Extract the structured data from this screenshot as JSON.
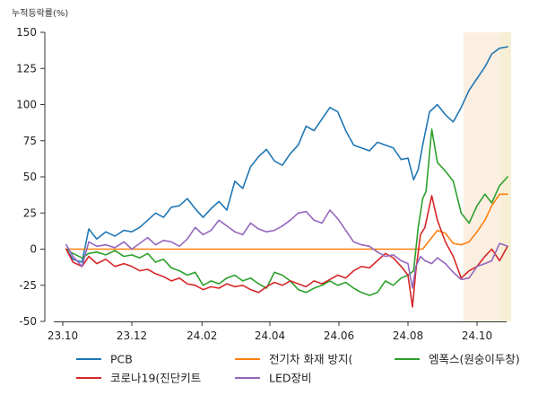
{
  "unit_label": "누적등락률(%)",
  "chart_data": {
    "type": "line",
    "title": "",
    "xlabel": "",
    "ylabel": "누적등락률(%)",
    "ylim": [
      -50,
      150
    ],
    "yticks": [
      -50,
      -25,
      0,
      25,
      50,
      75,
      100,
      125,
      150
    ],
    "xlim": [
      "2023-10-01",
      "2024-10-31"
    ],
    "xticks": [
      {
        "date": "2023-10-01",
        "label": "23.10"
      },
      {
        "date": "2023-12-01",
        "label": "23.12"
      },
      {
        "date": "2024-02-01",
        "label": "24.02"
      },
      {
        "date": "2024-04-01",
        "label": "24.04"
      },
      {
        "date": "2024-06-01",
        "label": "24.06"
      },
      {
        "date": "2024-08-01",
        "label": "24.08"
      },
      {
        "date": "2024-10-01",
        "label": "24.10"
      }
    ],
    "shaded_ranges": [
      {
        "from": "2024-09-19",
        "to": "2024-10-31",
        "color": "#fbefe2"
      },
      {
        "from": "2024-10-22",
        "to": "2024-10-31",
        "color": "#f6efd4"
      }
    ],
    "legend_position": "bottom",
    "series": [
      {
        "name": "PCB",
        "color": "#1f77b4",
        "points": [
          [
            "2023-10-04",
            0
          ],
          [
            "2023-10-10",
            -7
          ],
          [
            "2023-10-18",
            -9
          ],
          [
            "2023-10-24",
            14
          ],
          [
            "2023-10-31",
            7
          ],
          [
            "2023-11-08",
            12
          ],
          [
            "2023-11-16",
            9
          ],
          [
            "2023-11-24",
            13
          ],
          [
            "2023-12-01",
            12
          ],
          [
            "2023-12-08",
            15
          ],
          [
            "2023-12-15",
            20
          ],
          [
            "2023-12-22",
            25
          ],
          [
            "2023-12-29",
            22
          ],
          [
            "2024-01-05",
            29
          ],
          [
            "2024-01-12",
            30
          ],
          [
            "2024-01-19",
            35
          ],
          [
            "2024-01-26",
            28
          ],
          [
            "2024-02-02",
            22
          ],
          [
            "2024-02-09",
            28
          ],
          [
            "2024-02-16",
            33
          ],
          [
            "2024-02-23",
            27
          ],
          [
            "2024-03-01",
            47
          ],
          [
            "2024-03-08",
            42
          ],
          [
            "2024-03-15",
            57
          ],
          [
            "2024-03-22",
            64
          ],
          [
            "2024-03-29",
            69
          ],
          [
            "2024-04-05",
            61
          ],
          [
            "2024-04-12",
            58
          ],
          [
            "2024-04-19",
            66
          ],
          [
            "2024-04-26",
            72
          ],
          [
            "2024-05-03",
            85
          ],
          [
            "2024-05-10",
            82
          ],
          [
            "2024-05-17",
            90
          ],
          [
            "2024-05-24",
            98
          ],
          [
            "2024-05-31",
            95
          ],
          [
            "2024-06-07",
            82
          ],
          [
            "2024-06-14",
            72
          ],
          [
            "2024-06-21",
            70
          ],
          [
            "2024-06-28",
            68
          ],
          [
            "2024-07-05",
            74
          ],
          [
            "2024-07-12",
            72
          ],
          [
            "2024-07-19",
            70
          ],
          [
            "2024-07-26",
            62
          ],
          [
            "2024-08-01",
            63
          ],
          [
            "2024-08-06",
            48
          ],
          [
            "2024-08-10",
            55
          ],
          [
            "2024-08-14",
            72
          ],
          [
            "2024-08-20",
            95
          ],
          [
            "2024-08-27",
            100
          ],
          [
            "2024-09-03",
            93
          ],
          [
            "2024-09-10",
            88
          ],
          [
            "2024-09-17",
            98
          ],
          [
            "2024-09-24",
            110
          ],
          [
            "2024-10-01",
            118
          ],
          [
            "2024-10-08",
            126
          ],
          [
            "2024-10-14",
            135
          ],
          [
            "2024-10-21",
            139
          ],
          [
            "2024-10-28",
            140
          ]
        ]
      },
      {
        "name": "전기차 화재 방지(",
        "color": "#ff7f0e",
        "points": [
          [
            "2023-10-04",
            0
          ],
          [
            "2024-08-14",
            0
          ],
          [
            "2024-08-20",
            6
          ],
          [
            "2024-08-27",
            13
          ],
          [
            "2024-09-03",
            11
          ],
          [
            "2024-09-10",
            4
          ],
          [
            "2024-09-17",
            3
          ],
          [
            "2024-09-24",
            5
          ],
          [
            "2024-10-01",
            12
          ],
          [
            "2024-10-08",
            20
          ],
          [
            "2024-10-14",
            30
          ],
          [
            "2024-10-21",
            38
          ],
          [
            "2024-10-28",
            38
          ]
        ]
      },
      {
        "name": "엠폭스(원숭이두창)",
        "color": "#2ca02c",
        "points": [
          [
            "2023-10-04",
            0
          ],
          [
            "2023-10-10",
            -3
          ],
          [
            "2023-10-18",
            -6
          ],
          [
            "2023-10-24",
            -3
          ],
          [
            "2023-10-31",
            -2
          ],
          [
            "2023-11-08",
            -4
          ],
          [
            "2023-11-16",
            -1
          ],
          [
            "2023-11-24",
            -5
          ],
          [
            "2023-12-01",
            -4
          ],
          [
            "2023-12-08",
            -6
          ],
          [
            "2023-12-15",
            -3
          ],
          [
            "2023-12-22",
            -9
          ],
          [
            "2023-12-29",
            -7
          ],
          [
            "2024-01-05",
            -13
          ],
          [
            "2024-01-12",
            -15
          ],
          [
            "2024-01-19",
            -18
          ],
          [
            "2024-01-26",
            -16
          ],
          [
            "2024-02-02",
            -25
          ],
          [
            "2024-02-09",
            -22
          ],
          [
            "2024-02-16",
            -24
          ],
          [
            "2024-02-23",
            -20
          ],
          [
            "2024-03-01",
            -18
          ],
          [
            "2024-03-08",
            -22
          ],
          [
            "2024-03-15",
            -20
          ],
          [
            "2024-03-22",
            -24
          ],
          [
            "2024-03-29",
            -27
          ],
          [
            "2024-04-05",
            -16
          ],
          [
            "2024-04-12",
            -18
          ],
          [
            "2024-04-19",
            -22
          ],
          [
            "2024-04-26",
            -28
          ],
          [
            "2024-05-03",
            -30
          ],
          [
            "2024-05-10",
            -27
          ],
          [
            "2024-05-17",
            -25
          ],
          [
            "2024-05-24",
            -22
          ],
          [
            "2024-05-31",
            -25
          ],
          [
            "2024-06-07",
            -23
          ],
          [
            "2024-06-14",
            -27
          ],
          [
            "2024-06-21",
            -30
          ],
          [
            "2024-06-28",
            -32
          ],
          [
            "2024-07-05",
            -30
          ],
          [
            "2024-07-12",
            -22
          ],
          [
            "2024-07-19",
            -25
          ],
          [
            "2024-07-26",
            -20
          ],
          [
            "2024-08-01",
            -18
          ],
          [
            "2024-08-06",
            -15
          ],
          [
            "2024-08-10",
            15
          ],
          [
            "2024-08-14",
            35
          ],
          [
            "2024-08-17",
            40
          ],
          [
            "2024-08-22",
            83
          ],
          [
            "2024-08-27",
            60
          ],
          [
            "2024-09-03",
            54
          ],
          [
            "2024-09-10",
            47
          ],
          [
            "2024-09-17",
            25
          ],
          [
            "2024-09-24",
            18
          ],
          [
            "2024-10-01",
            30
          ],
          [
            "2024-10-08",
            38
          ],
          [
            "2024-10-14",
            32
          ],
          [
            "2024-10-21",
            44
          ],
          [
            "2024-10-28",
            50
          ]
        ]
      },
      {
        "name": "코로나19(진단키트",
        "color": "#d62728",
        "points": [
          [
            "2023-10-04",
            0
          ],
          [
            "2023-10-10",
            -9
          ],
          [
            "2023-10-18",
            -12
          ],
          [
            "2023-10-24",
            -5
          ],
          [
            "2023-10-31",
            -10
          ],
          [
            "2023-11-08",
            -7
          ],
          [
            "2023-11-16",
            -12
          ],
          [
            "2023-11-24",
            -10
          ],
          [
            "2023-12-01",
            -12
          ],
          [
            "2023-12-08",
            -15
          ],
          [
            "2023-12-15",
            -14
          ],
          [
            "2023-12-22",
            -17
          ],
          [
            "2023-12-29",
            -19
          ],
          [
            "2024-01-05",
            -22
          ],
          [
            "2024-01-12",
            -20
          ],
          [
            "2024-01-19",
            -24
          ],
          [
            "2024-01-26",
            -25
          ],
          [
            "2024-02-02",
            -28
          ],
          [
            "2024-02-09",
            -26
          ],
          [
            "2024-02-16",
            -27
          ],
          [
            "2024-02-23",
            -24
          ],
          [
            "2024-03-01",
            -26
          ],
          [
            "2024-03-08",
            -25
          ],
          [
            "2024-03-15",
            -28
          ],
          [
            "2024-03-22",
            -30
          ],
          [
            "2024-03-29",
            -26
          ],
          [
            "2024-04-05",
            -23
          ],
          [
            "2024-04-12",
            -25
          ],
          [
            "2024-04-19",
            -22
          ],
          [
            "2024-04-26",
            -24
          ],
          [
            "2024-05-03",
            -26
          ],
          [
            "2024-05-10",
            -22
          ],
          [
            "2024-05-17",
            -24
          ],
          [
            "2024-05-24",
            -21
          ],
          [
            "2024-05-31",
            -18
          ],
          [
            "2024-06-07",
            -20
          ],
          [
            "2024-06-14",
            -15
          ],
          [
            "2024-06-21",
            -12
          ],
          [
            "2024-06-28",
            -13
          ],
          [
            "2024-07-05",
            -8
          ],
          [
            "2024-07-12",
            -3
          ],
          [
            "2024-07-19",
            -6
          ],
          [
            "2024-07-26",
            -12
          ],
          [
            "2024-08-01",
            -18
          ],
          [
            "2024-08-05",
            -40
          ],
          [
            "2024-08-08",
            -15
          ],
          [
            "2024-08-12",
            10
          ],
          [
            "2024-08-16",
            15
          ],
          [
            "2024-08-22",
            37
          ],
          [
            "2024-08-27",
            20
          ],
          [
            "2024-09-03",
            5
          ],
          [
            "2024-09-10",
            -5
          ],
          [
            "2024-09-17",
            -20
          ],
          [
            "2024-09-24",
            -15
          ],
          [
            "2024-10-01",
            -12
          ],
          [
            "2024-10-08",
            -5
          ],
          [
            "2024-10-14",
            0
          ],
          [
            "2024-10-21",
            -8
          ],
          [
            "2024-10-28",
            2
          ]
        ]
      },
      {
        "name": "LED장비",
        "color": "#9467bd",
        "points": [
          [
            "2023-10-04",
            3
          ],
          [
            "2023-10-10",
            -5
          ],
          [
            "2023-10-18",
            -12
          ],
          [
            "2023-10-24",
            5
          ],
          [
            "2023-10-31",
            2
          ],
          [
            "2023-11-08",
            3
          ],
          [
            "2023-11-16",
            1
          ],
          [
            "2023-11-24",
            5
          ],
          [
            "2023-12-01",
            0
          ],
          [
            "2023-12-08",
            4
          ],
          [
            "2023-12-15",
            8
          ],
          [
            "2023-12-22",
            3
          ],
          [
            "2023-12-29",
            6
          ],
          [
            "2024-01-05",
            5
          ],
          [
            "2024-01-12",
            2
          ],
          [
            "2024-01-19",
            7
          ],
          [
            "2024-01-26",
            15
          ],
          [
            "2024-02-02",
            10
          ],
          [
            "2024-02-09",
            13
          ],
          [
            "2024-02-16",
            20
          ],
          [
            "2024-02-23",
            16
          ],
          [
            "2024-03-01",
            12
          ],
          [
            "2024-03-08",
            10
          ],
          [
            "2024-03-15",
            18
          ],
          [
            "2024-03-22",
            14
          ],
          [
            "2024-03-29",
            12
          ],
          [
            "2024-04-05",
            13
          ],
          [
            "2024-04-12",
            16
          ],
          [
            "2024-04-19",
            20
          ],
          [
            "2024-04-26",
            25
          ],
          [
            "2024-05-03",
            26
          ],
          [
            "2024-05-10",
            20
          ],
          [
            "2024-05-17",
            18
          ],
          [
            "2024-05-24",
            27
          ],
          [
            "2024-05-31",
            21
          ],
          [
            "2024-06-07",
            13
          ],
          [
            "2024-06-14",
            5
          ],
          [
            "2024-06-21",
            3
          ],
          [
            "2024-06-28",
            2
          ],
          [
            "2024-07-05",
            -2
          ],
          [
            "2024-07-12",
            -5
          ],
          [
            "2024-07-19",
            -4
          ],
          [
            "2024-07-26",
            -8
          ],
          [
            "2024-08-01",
            -10
          ],
          [
            "2024-08-05",
            -27
          ],
          [
            "2024-08-08",
            -12
          ],
          [
            "2024-08-12",
            -5
          ],
          [
            "2024-08-16",
            -8
          ],
          [
            "2024-08-22",
            -10
          ],
          [
            "2024-08-27",
            -6
          ],
          [
            "2024-09-03",
            -10
          ],
          [
            "2024-09-10",
            -16
          ],
          [
            "2024-09-17",
            -21
          ],
          [
            "2024-09-24",
            -20
          ],
          [
            "2024-10-01",
            -12
          ],
          [
            "2024-10-08",
            -10
          ],
          [
            "2024-10-14",
            -8
          ],
          [
            "2024-10-21",
            4
          ],
          [
            "2024-10-28",
            2
          ]
        ]
      }
    ]
  }
}
